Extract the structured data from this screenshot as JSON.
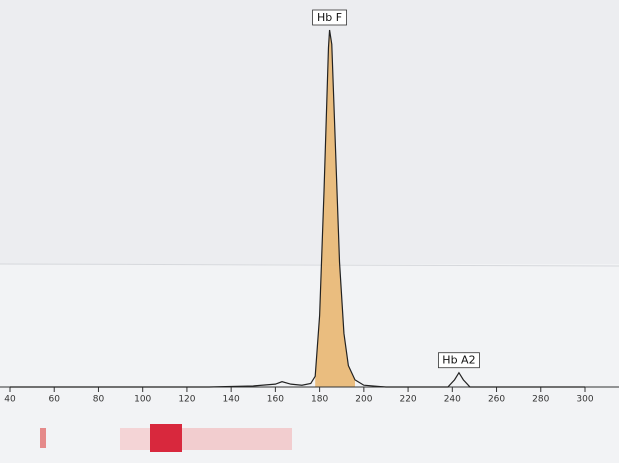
{
  "chart_data": {
    "type": "line",
    "x": [
      40,
      130,
      150,
      160,
      163,
      167,
      172,
      176,
      178,
      180,
      182,
      184,
      184.5,
      185.5,
      187,
      189,
      191,
      193,
      196,
      200,
      210,
      238,
      241,
      243,
      245,
      248,
      300
    ],
    "series": [
      {
        "color": "#222222",
        "values": [
          0,
          0,
          0.3,
          0.8,
          1.5,
          0.8,
          0.5,
          1,
          3,
          20,
          55,
          95,
          100,
          96,
          70,
          35,
          15,
          6,
          2,
          0.5,
          0,
          0,
          2,
          4,
          2,
          0,
          0
        ]
      }
    ],
    "highlight": {
      "from": 178,
      "to": 196,
      "color": "#e9b772"
    },
    "annotations": [
      {
        "text": "Hb F",
        "x": 184.5,
        "y": 100
      },
      {
        "text": "Hb A2",
        "x": 243,
        "y": 4
      }
    ],
    "xlim": [
      40,
      300
    ],
    "ylim": [
      0,
      100
    ],
    "xticks": [
      40,
      60,
      80,
      100,
      120,
      140,
      160,
      180,
      200,
      220,
      240,
      260,
      280,
      300
    ]
  }
}
